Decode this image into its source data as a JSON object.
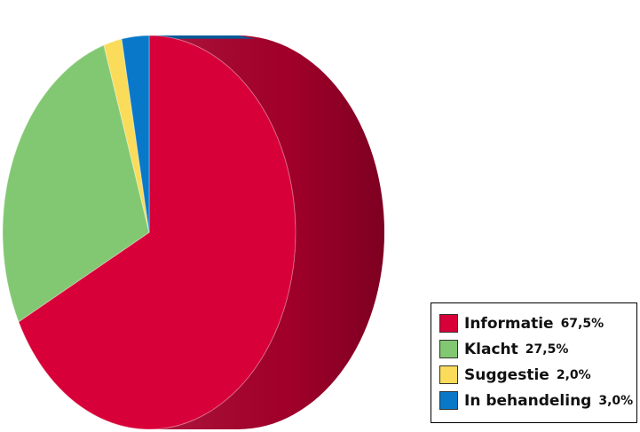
{
  "chart_data": {
    "type": "pie",
    "title": "",
    "series": [
      {
        "name": "Informatie",
        "value": 67.5,
        "label": "67,5%",
        "color": "#d80038",
        "dark": "#a8002c"
      },
      {
        "name": "Klacht",
        "value": 27.5,
        "label": "27,5%",
        "color": "#82c872",
        "dark": "#5e9a52"
      },
      {
        "name": "Suggestie",
        "value": 2.0,
        "label": "2,0%",
        "color": "#fadc5a",
        "dark": "#c8ac30"
      },
      {
        "name": "In behandeling",
        "value": 3.0,
        "label": "3,0%",
        "color": "#0a78c8",
        "dark": "#065a98"
      }
    ],
    "legend_position": "bottom-right",
    "grid": false,
    "style": "3d-pie"
  }
}
